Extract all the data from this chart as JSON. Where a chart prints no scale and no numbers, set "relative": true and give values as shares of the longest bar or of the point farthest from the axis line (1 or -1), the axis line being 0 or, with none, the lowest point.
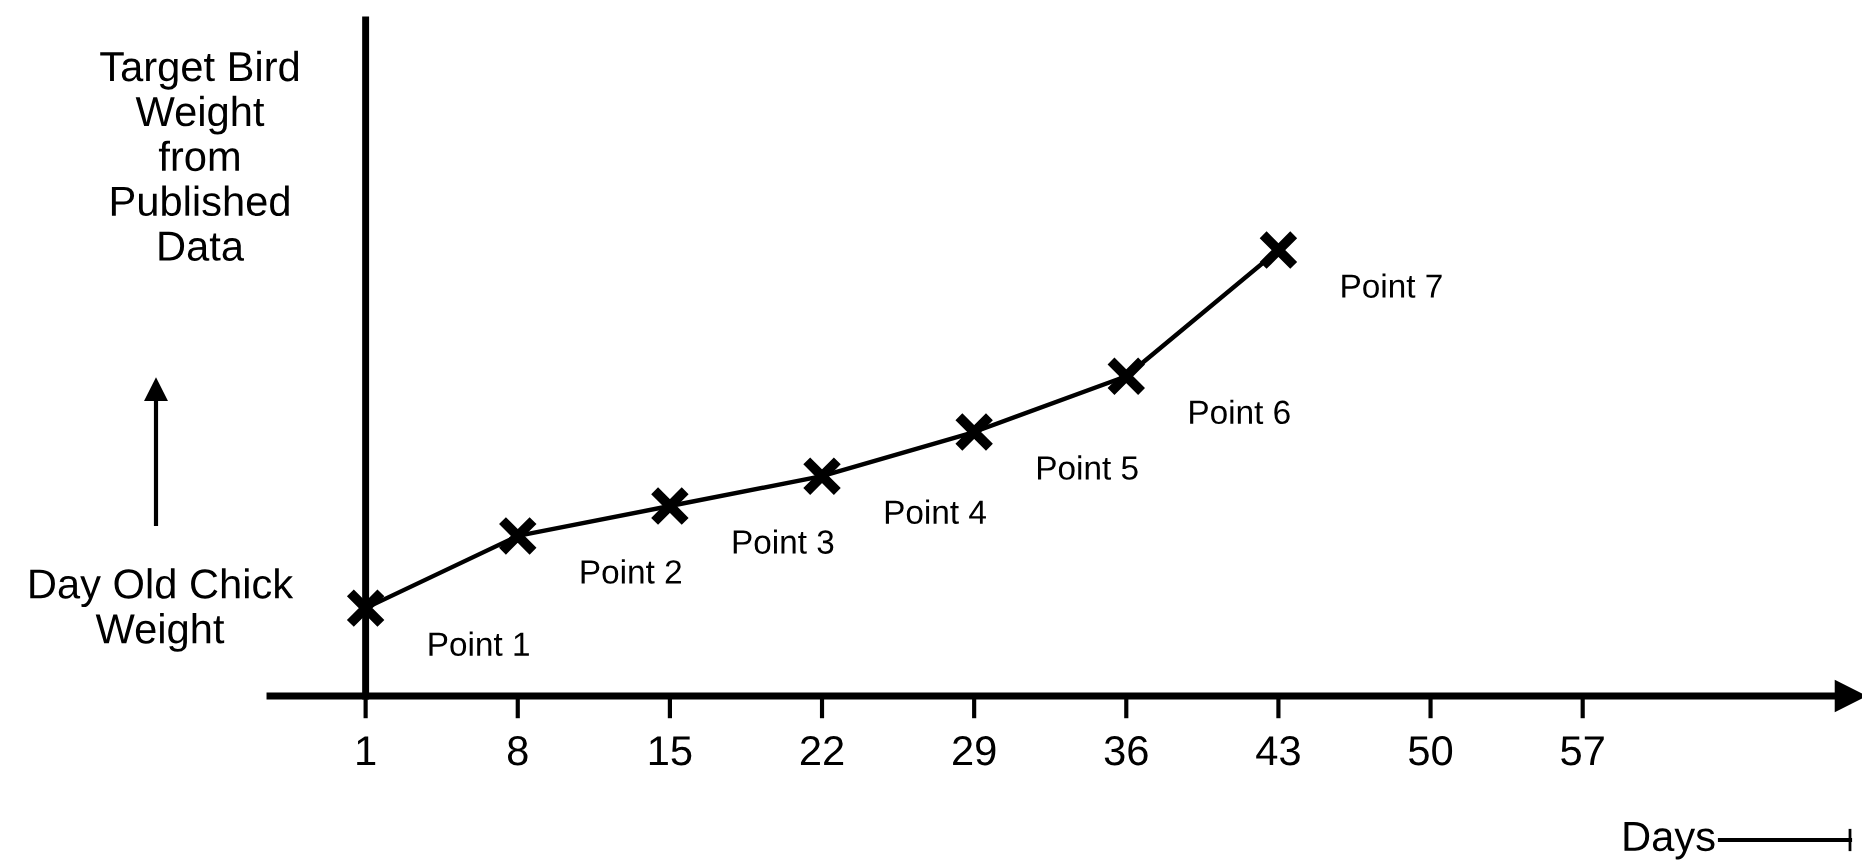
{
  "chart_data": {
    "type": "line",
    "relative": true,
    "x": [
      1,
      8,
      15,
      22,
      29,
      36,
      43
    ],
    "series": [
      {
        "color": "#000000",
        "values": [
          0.197,
          0.359,
          0.426,
          0.493,
          0.592,
          0.717,
          1
        ]
      }
    ],
    "xlim": [
      -3.4,
      69.3
    ],
    "xticks": [
      1,
      8,
      15,
      22,
      29,
      36,
      43,
      50,
      57
    ],
    "xlabel": "Days",
    "marker": "cross",
    "line_style": "solid",
    "legend": false,
    "annotations": [
      {
        "text": "Point 1",
        "x": 1,
        "y": 0.197
      },
      {
        "text": "Point 2",
        "x": 8,
        "y": 0.359
      },
      {
        "text": "Point 3",
        "x": 15,
        "y": 0.426
      },
      {
        "text": "Point 4",
        "x": 22,
        "y": 0.493
      },
      {
        "text": "Point 5",
        "x": 29,
        "y": 0.592
      },
      {
        "text": "Point 6",
        "x": 36,
        "y": 0.717
      },
      {
        "text": "Point 7",
        "x": 43,
        "y": 1
      },
      "Target Bird\nWeight\nfrom\nPublished\nData",
      "Day Old Chick\nWeight"
    ]
  }
}
